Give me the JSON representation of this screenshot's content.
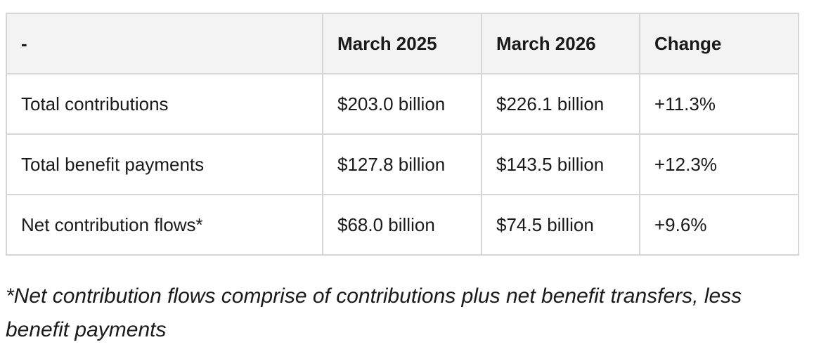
{
  "table": {
    "headers": [
      "-",
      "March 2025",
      "March 2026",
      "Change"
    ],
    "rows": [
      [
        "Total contributions",
        "$203.0 billion",
        "$226.1 billion",
        "+11.3%"
      ],
      [
        "Total benefit payments",
        "$127.8 billion",
        "$143.5 billion",
        "+12.3%"
      ],
      [
        "Net contribution flows*",
        "$68.0 billion",
        "$74.5 billion",
        "+9.6%"
      ]
    ]
  },
  "footnote": "*Net contribution flows comprise of contributions plus net benefit transfers, less benefit payments",
  "colors": {
    "header_bg": "#f3f3f3",
    "border": "#d6d6d6",
    "text": "#1a1a1a"
  }
}
